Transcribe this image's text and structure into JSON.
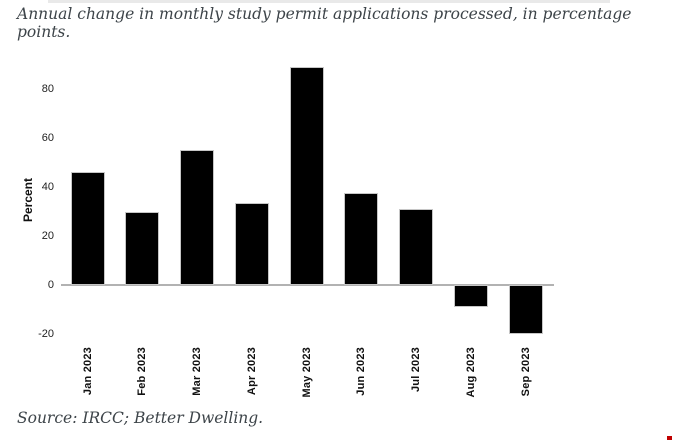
{
  "title": "Annual change in monthly study permit applications processed, in percentage points.",
  "source": "Source: IRCC; Better Dwelling.",
  "chart_data": {
    "type": "bar",
    "title": "Annual change in monthly study permit applications processed, in percentage points.",
    "categories": [
      "Jan 2023",
      "Feb 2023",
      "Mar 2023",
      "Apr 2023",
      "May 2023",
      "Jun 2023",
      "Jul 2023",
      "Aug 2023",
      "Sep 2023"
    ],
    "values": [
      46,
      30,
      55,
      33.5,
      89,
      37.5,
      31,
      -9,
      -20
    ],
    "xlabel": "",
    "ylabel": "Percent",
    "yticks": [
      80,
      60,
      40,
      20,
      0,
      -20
    ],
    "ylim": [
      -25,
      92
    ],
    "grid": false,
    "legend_position": "none",
    "bar_color": "#000000",
    "bar_border_color": "#c6c6c6",
    "axis_line_color": "#b2b2b2"
  },
  "colors": {
    "text": "#3d4449",
    "tick_label": "#222222",
    "top_divider": "#e9e9e9",
    "artifact_red": "#c00000"
  }
}
